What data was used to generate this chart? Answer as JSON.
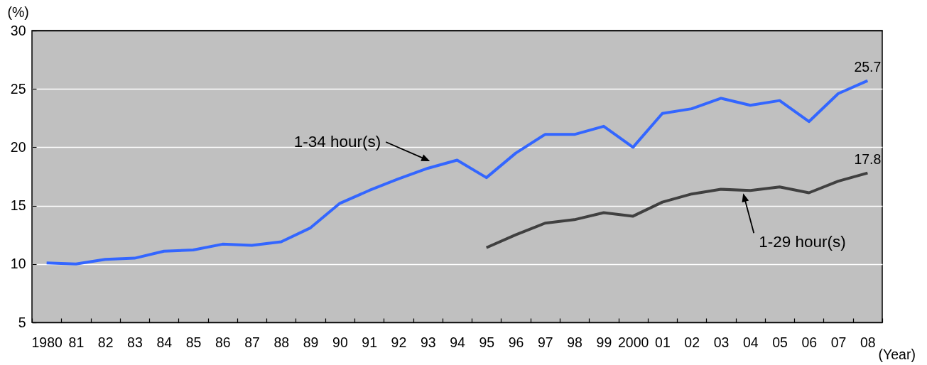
{
  "chart_data": {
    "type": "line",
    "xlabel": "(Year)",
    "ylabel": "(%)",
    "categories": [
      "1980",
      "81",
      "82",
      "83",
      "84",
      "85",
      "86",
      "87",
      "88",
      "89",
      "90",
      "91",
      "92",
      "93",
      "94",
      "95",
      "96",
      "97",
      "98",
      "99",
      "2000",
      "01",
      "02",
      "03",
      "04",
      "05",
      "06",
      "07",
      "08"
    ],
    "ylim": [
      5,
      30
    ],
    "yticks": [
      5,
      10,
      15,
      20,
      25,
      30
    ],
    "grid": "y",
    "series": [
      {
        "name": "1-34 hour(s)",
        "color": "#3366ff",
        "values": [
          10.1,
          10.0,
          10.4,
          10.5,
          11.1,
          11.2,
          11.7,
          11.6,
          11.9,
          13.1,
          15.2,
          16.3,
          17.3,
          18.2,
          18.9,
          17.4,
          19.5,
          21.1,
          21.1,
          21.8,
          20.0,
          22.9,
          23.3,
          24.2,
          23.6,
          24.0,
          22.2,
          24.6,
          25.7
        ],
        "value_labels": [
          null,
          null,
          null,
          null,
          null,
          null,
          null,
          null,
          null,
          null,
          null,
          null,
          null,
          null,
          null,
          null,
          null,
          null,
          null,
          null,
          null,
          null,
          null,
          null,
          null,
          null,
          null,
          null,
          "25.7"
        ]
      },
      {
        "name": "1-29 hour(s)",
        "color": "#404040",
        "values": [
          null,
          null,
          null,
          null,
          null,
          null,
          null,
          null,
          null,
          null,
          null,
          null,
          null,
          null,
          null,
          11.4,
          12.5,
          13.5,
          13.8,
          14.4,
          14.1,
          15.3,
          16.0,
          16.4,
          16.3,
          16.6,
          16.1,
          17.1,
          17.8
        ],
        "value_labels": [
          null,
          null,
          null,
          null,
          null,
          null,
          null,
          null,
          null,
          null,
          null,
          null,
          null,
          null,
          null,
          null,
          null,
          null,
          null,
          null,
          null,
          null,
          null,
          null,
          null,
          null,
          null,
          null,
          "17.8"
        ]
      }
    ]
  }
}
